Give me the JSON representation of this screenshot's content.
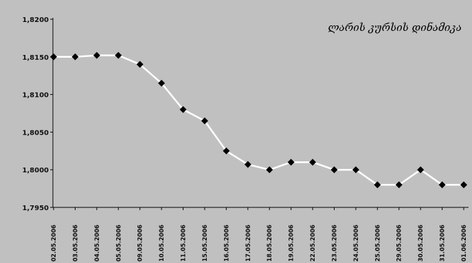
{
  "chart_data": {
    "type": "line",
    "title": "ლარის კურსის დინამიკა",
    "xlabel": "",
    "ylabel": "",
    "ylim": [
      1.795,
      1.82
    ],
    "y_ticks": [
      "1,7950",
      "1,8000",
      "1,8050",
      "1,8100",
      "1,8150",
      "1,8200"
    ],
    "grid": false,
    "legend": "none",
    "colors": {
      "plot_background": "#c0c0c0",
      "line": "#ffffff",
      "marker": "#000000"
    },
    "categories": [
      "02.05.2006",
      "03.05.2006",
      "04.05.2006",
      "05.05.2006",
      "09.05.2006",
      "10.05.2006",
      "11.05.2006",
      "15.05.2006",
      "16.05.2006",
      "17.05.2006",
      "18.05.2006",
      "19.05.2006",
      "22.05.2006",
      "23.05.2006",
      "24.05.2006",
      "25.05.2006",
      "29.05.2006",
      "30.05.2006",
      "31.05.2006",
      "01.06.2006"
    ],
    "series": [
      {
        "values": [
          1.815,
          1.815,
          1.8152,
          1.8152,
          1.814,
          1.8115,
          1.808,
          1.8065,
          1.8025,
          1.8007,
          1.8,
          1.801,
          1.801,
          1.8,
          1.8,
          1.798,
          1.798,
          1.8,
          1.798,
          1.798
        ]
      }
    ]
  }
}
